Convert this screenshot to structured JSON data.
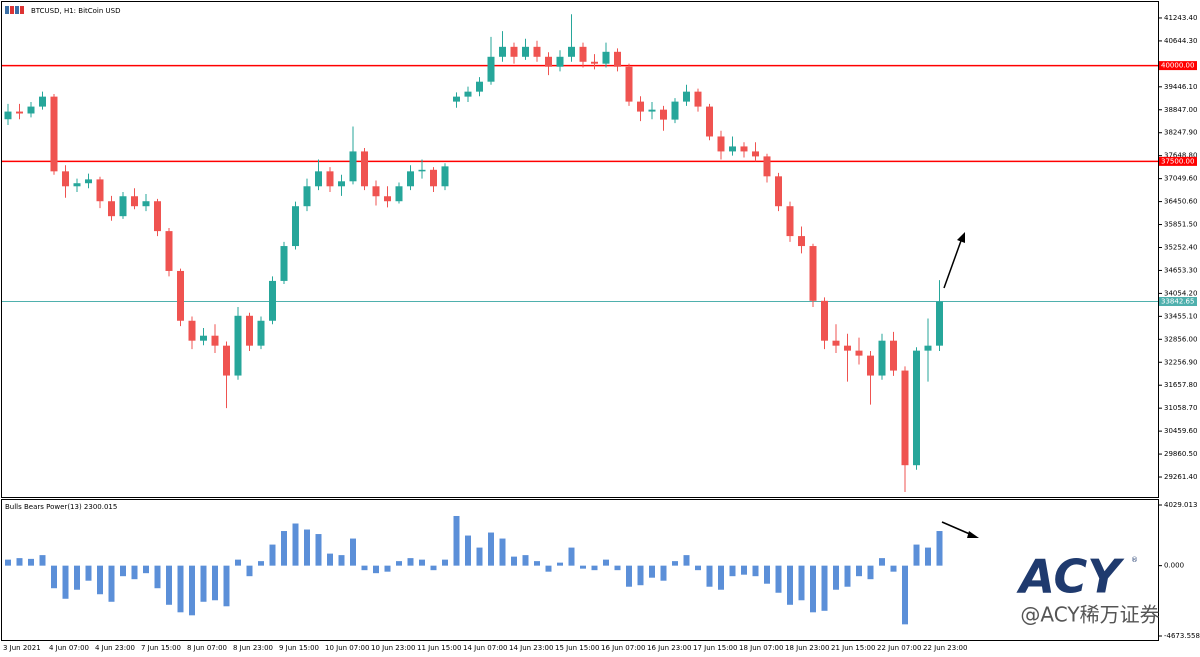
{
  "chart_data": [
    {
      "type": "candlestick",
      "title": "BTCUSD, H1:  BitCoin USD",
      "categories": [
        "3 Jun 2021",
        null,
        null,
        null,
        "4 Jun 07:00",
        null,
        null,
        null,
        "4 Jun 23:00",
        null,
        null,
        null,
        "7 Jun 15:00",
        null,
        null,
        null,
        "8 Jun 07:00",
        null,
        null,
        null,
        "8 Jun 23:00",
        null,
        null,
        null,
        "9 Jun 15:00",
        null,
        null,
        null,
        "10 Jun 07:00",
        null,
        null,
        null,
        "10 Jun 23:00",
        null,
        null,
        null,
        "11 Jun 15:00",
        null,
        null,
        null,
        "14 Jun 07:00",
        null,
        null,
        null,
        "14 Jun 23:00",
        null,
        null,
        null,
        "15 Jun 15:00",
        null,
        null,
        null,
        "16 Jun 07:00",
        null,
        null,
        null,
        "16 Jun 23:00",
        null,
        null,
        null,
        "17 Jun 15:00",
        null,
        null,
        null,
        "18 Jun 07:00",
        null,
        null,
        null,
        "18 Jun 23:00",
        null,
        null,
        null,
        "21 Jun 15:00",
        null,
        null,
        null,
        "22 Jun 07:00",
        null,
        null,
        null,
        "22 Jun 23:00",
        null
      ],
      "open": [
        38600,
        38800,
        38750,
        38930,
        39190,
        37240,
        36850,
        36930,
        37030,
        36460,
        36070,
        36590,
        36330,
        36460,
        35680,
        34640,
        33340,
        32820,
        32950,
        32690,
        31910,
        33470,
        32690,
        33340,
        34380,
        35290,
        36330,
        36850,
        37240,
        36850,
        36980,
        37760,
        36850,
        36590,
        36460,
        36850,
        37240,
        37280,
        36850,
        39060,
        39190,
        39320,
        39580,
        40230,
        40490,
        40230,
        40490,
        40230,
        39970,
        40230,
        40490,
        40100,
        40050,
        40360,
        39970,
        39060,
        38800,
        38850,
        38590,
        39060,
        39320,
        38930,
        38150,
        37760,
        37890,
        37760,
        37630,
        37110,
        36330,
        35550,
        35290,
        33860,
        32820,
        32690,
        32560,
        32430,
        31910,
        32820,
        32040,
        29570,
        32560,
        32690
      ],
      "high": [
        39000,
        39000,
        39050,
        39320,
        39260,
        37400,
        37050,
        37180,
        37100,
        36600,
        36700,
        36800,
        36650,
        36520,
        35760,
        34700,
        33450,
        33150,
        33250,
        32800,
        33700,
        33550,
        33450,
        34500,
        35400,
        36450,
        37050,
        37550,
        37350,
        37150,
        38410,
        37850,
        37000,
        36850,
        36950,
        37400,
        37550,
        37350,
        37450,
        39300,
        39450,
        39700,
        40750,
        40900,
        40600,
        40700,
        40650,
        40350,
        40400,
        41340,
        40600,
        40300,
        40600,
        40450,
        40050,
        39200,
        39050,
        38950,
        39150,
        39500,
        39400,
        39000,
        38300,
        38150,
        38000,
        38000,
        37700,
        37200,
        36450,
        35800,
        35350,
        33950,
        33250,
        33000,
        32900,
        32550,
        33000,
        33050,
        32150,
        32650,
        33400,
        34400
      ],
      "low": [
        38450,
        38600,
        38650,
        38850,
        37150,
        36550,
        36700,
        36800,
        36280,
        35950,
        36000,
        36250,
        36200,
        35550,
        34500,
        33200,
        32600,
        32700,
        32500,
        31060,
        31800,
        32550,
        32600,
        33250,
        34300,
        35200,
        36200,
        36750,
        36700,
        36600,
        36900,
        36750,
        36350,
        36300,
        36400,
        36750,
        37050,
        36700,
        36750,
        38900,
        39050,
        39200,
        39500,
        40100,
        40050,
        40150,
        40100,
        39750,
        39850,
        40100,
        39950,
        39900,
        39950,
        39850,
        38950,
        38550,
        38600,
        38300,
        38500,
        38950,
        38800,
        38050,
        37550,
        37650,
        37600,
        37500,
        36950,
        36200,
        35400,
        35100,
        33700,
        32600,
        32500,
        31750,
        32200,
        31150,
        31800,
        31900,
        28870,
        29450,
        31750,
        32550
      ],
      "close": [
        38800,
        38750,
        38930,
        39190,
        37240,
        36850,
        36930,
        37030,
        36460,
        36070,
        36590,
        36330,
        36460,
        35680,
        34640,
        33340,
        32820,
        32950,
        32690,
        31910,
        33470,
        32690,
        33340,
        34380,
        35290,
        36330,
        36850,
        37240,
        36850,
        36980,
        37760,
        36850,
        36590,
        36460,
        36850,
        37240,
        37280,
        36850,
        37370,
        39190,
        39320,
        39580,
        40230,
        40490,
        40230,
        40490,
        40230,
        39970,
        40230,
        40490,
        40100,
        40050,
        40360,
        39970,
        39060,
        38800,
        38850,
        38590,
        39060,
        39320,
        38930,
        38150,
        37760,
        37890,
        37760,
        37630,
        37110,
        36330,
        35550,
        35290,
        33860,
        32820,
        32690,
        32560,
        32430,
        31910,
        32820,
        32040,
        29570,
        32560,
        32690,
        33842.65
      ],
      "up_color": "#26a69a",
      "down_color": "#ef5350",
      "ylim": [
        28740,
        41660
      ],
      "yticks": [
        {
          "value": 41243.4,
          "label": "41243.40"
        },
        {
          "value": 40644.3,
          "label": "40644.30"
        },
        {
          "value": 39446.1,
          "label": "39446.10"
        },
        {
          "value": 38847,
          "label": "38847.00"
        },
        {
          "value": 38247.9,
          "label": "38247.90"
        },
        {
          "value": 37648.8,
          "label": "37648.80"
        },
        {
          "value": 37049.6,
          "label": "37049.60"
        },
        {
          "value": 36450.6,
          "label": "36450.60"
        },
        {
          "value": 35851.5,
          "label": "35851.50"
        },
        {
          "value": 35252.4,
          "label": "35252.40"
        },
        {
          "value": 34653.3,
          "label": "34653.30"
        },
        {
          "value": 34054.2,
          "label": "34054.20"
        },
        {
          "value": 33455.1,
          "label": "33455.10"
        },
        {
          "value": 32856,
          "label": "32856.00"
        },
        {
          "value": 32256.9,
          "label": "32256.90"
        },
        {
          "value": 31657.8,
          "label": "31657.80"
        },
        {
          "value": 31058.7,
          "label": "31058.70"
        },
        {
          "value": 30459.6,
          "label": "30459.60"
        },
        {
          "value": 29860.5,
          "label": "29860.50"
        },
        {
          "value": 29261.4,
          "label": "29261.40"
        }
      ],
      "hlines": [
        {
          "value": 40000,
          "label": "40000.00",
          "color": "#ff0000"
        },
        {
          "value": 37500,
          "label": "37500.00",
          "color": "#ff0000"
        },
        {
          "value": 33842.65,
          "label": "33842.65",
          "color": "#4fb0ad"
        }
      ]
    },
    {
      "type": "bar",
      "title": "Bulls Bears Power(13) 2300.015",
      "values": [
        400,
        500,
        450,
        700,
        -1500,
        -2200,
        -1600,
        -1000,
        -1900,
        -2400,
        -700,
        -900,
        -500,
        -1500,
        -2600,
        -3100,
        -3300,
        -2400,
        -2300,
        -2700,
        400,
        -700,
        300,
        1400,
        2300,
        2800,
        2400,
        2100,
        800,
        700,
        1800,
        -300,
        -500,
        -400,
        300,
        500,
        400,
        -300,
        400,
        3300,
        2000,
        1200,
        2200,
        1800,
        600,
        700,
        300,
        -400,
        200,
        1200,
        -200,
        -300,
        400,
        -300,
        -1400,
        -1300,
        -800,
        -1000,
        300,
        700,
        -300,
        -1400,
        -1600,
        -700,
        -600,
        -700,
        -1200,
        -1800,
        -2600,
        -2300,
        -3100,
        -3000,
        -1600,
        -1400,
        -700,
        -900,
        500,
        -400,
        -3900,
        1400,
        1200,
        2300.015
      ],
      "color": "#5b8fd8",
      "ylim": [
        -4940,
        4362
      ],
      "yticks": [
        4029.013,
        {
          "value": 0,
          "label": "0.000"
        },
        -4673.558
      ]
    }
  ],
  "watermark": {
    "brand": "ACY",
    "registered": "®",
    "caption": "@ACY稀万证券"
  }
}
